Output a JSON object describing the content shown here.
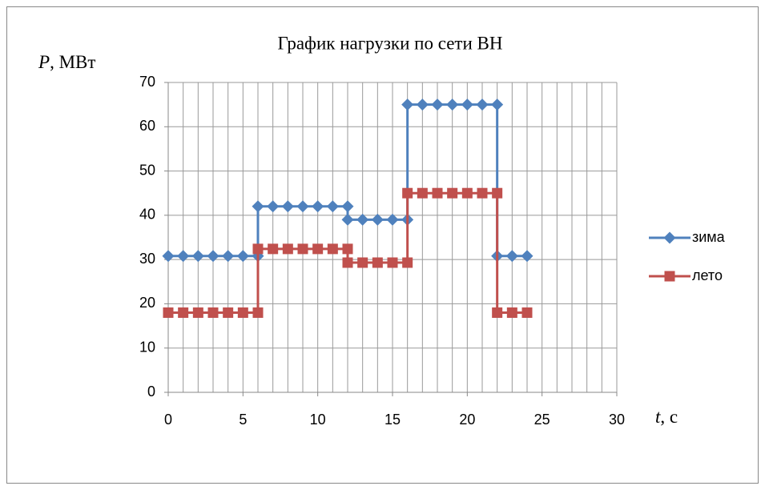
{
  "chart_data": {
    "type": "scatter-line",
    "title": "График нагрузки по сети ВН",
    "ylabel": {
      "var": "P",
      "unit": ", МВт"
    },
    "xlabel": {
      "var": "t",
      "unit": ", с"
    },
    "x": [
      0,
      1,
      2,
      3,
      4,
      5,
      6,
      6,
      7,
      8,
      9,
      10,
      11,
      12,
      12,
      13,
      14,
      15,
      16,
      16,
      17,
      18,
      19,
      20,
      21,
      22,
      22,
      23,
      24
    ],
    "series": [
      {
        "name": "зима",
        "color": "#4f81bd",
        "marker": "diamond",
        "values": [
          30.8,
          30.8,
          30.8,
          30.8,
          30.8,
          30.8,
          30.8,
          42,
          42,
          42,
          42,
          42,
          42,
          42,
          39,
          39,
          39,
          39,
          39,
          65,
          65,
          65,
          65,
          65,
          65,
          65,
          30.8,
          30.8,
          30.8
        ]
      },
      {
        "name": "лето",
        "color": "#c0504d",
        "marker": "square",
        "values": [
          18,
          18,
          18,
          18,
          18,
          18,
          18,
          32.4,
          32.4,
          32.4,
          32.4,
          32.4,
          32.4,
          32.4,
          29.3,
          29.3,
          29.3,
          29.3,
          29.3,
          45,
          45,
          45,
          45,
          45,
          45,
          45,
          18,
          18,
          18
        ]
      }
    ],
    "xlim": [
      0,
      30
    ],
    "xticks": [
      0,
      5,
      10,
      15,
      20,
      25,
      30
    ],
    "ylim": [
      0,
      70
    ],
    "yticks": [
      0,
      10,
      20,
      30,
      40,
      50,
      60,
      70
    ],
    "grid": true,
    "x_minor_grid": 1,
    "legend": "right"
  }
}
